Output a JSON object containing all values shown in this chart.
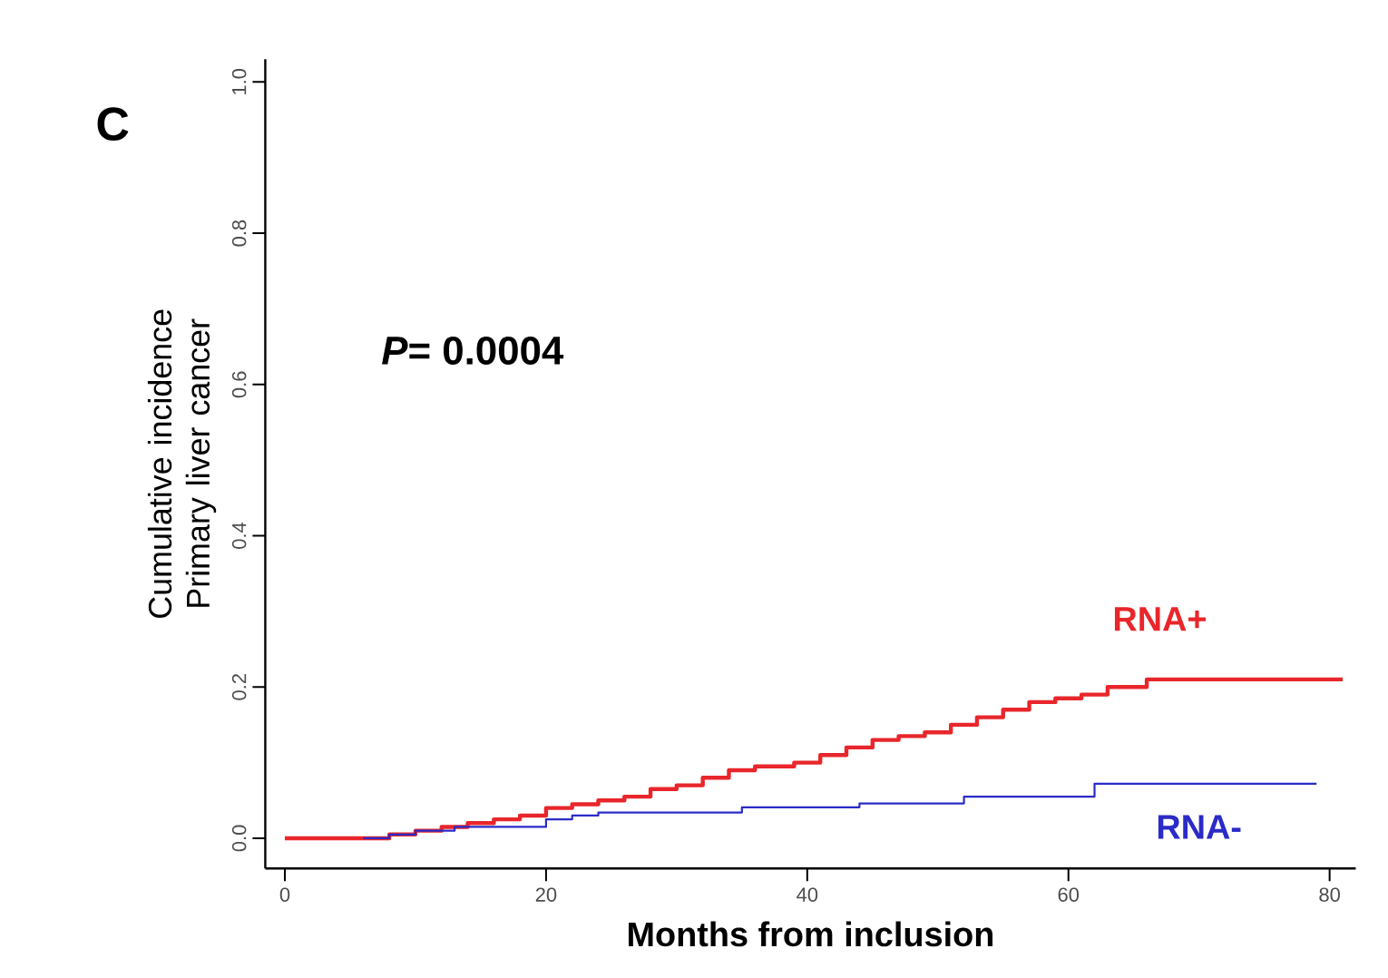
{
  "chart_data": {
    "type": "step",
    "xlabel": "Months from inclusion",
    "ylabel": "Cumulative incidence Primary liver cancer",
    "annotations": [
      "C",
      "*P*= 0.0004"
    ],
    "xlim": [
      -1.5,
      82
    ],
    "ylim": [
      -0.04,
      1.03
    ],
    "xticks": [
      0,
      20,
      40,
      60,
      80
    ],
    "yticks": [
      {
        "value": 0,
        "label": "0.0"
      },
      {
        "value": 0.2,
        "label": "0.2"
      },
      {
        "value": 0.4,
        "label": "0.4"
      },
      {
        "value": 0.6,
        "label": "0.6"
      },
      {
        "value": 0.8,
        "label": "0.8"
      },
      {
        "value": 1,
        "label": "1.0"
      }
    ],
    "grid": false,
    "series": [
      {
        "name": "RNA+",
        "color": "#e8262b",
        "x": [
          0,
          6,
          8,
          10,
          12,
          14,
          16,
          18,
          20,
          22,
          24,
          26,
          28,
          30,
          32,
          34,
          36,
          39,
          41,
          43,
          45,
          47,
          49,
          51,
          53,
          55,
          57,
          59,
          61,
          63,
          66,
          81
        ],
        "values": [
          0,
          0,
          0.005,
          0.01,
          0.015,
          0.02,
          0.025,
          0.03,
          0.04,
          0.045,
          0.05,
          0.055,
          0.065,
          0.07,
          0.08,
          0.09,
          0.095,
          0.1,
          0.11,
          0.12,
          0.13,
          0.135,
          0.14,
          0.15,
          0.16,
          0.17,
          0.18,
          0.185,
          0.19,
          0.2,
          0.21,
          0.21
        ]
      },
      {
        "name": "RNA-",
        "color": "#2b2bc8",
        "x": [
          6,
          8,
          10,
          13,
          20,
          22,
          24,
          35,
          44,
          52,
          62,
          79
        ],
        "values": [
          0,
          0.005,
          0.01,
          0.015,
          0.025,
          0.03,
          0.034,
          0.041,
          0.046,
          0.055,
          0.072,
          0.072
        ]
      }
    ]
  }
}
